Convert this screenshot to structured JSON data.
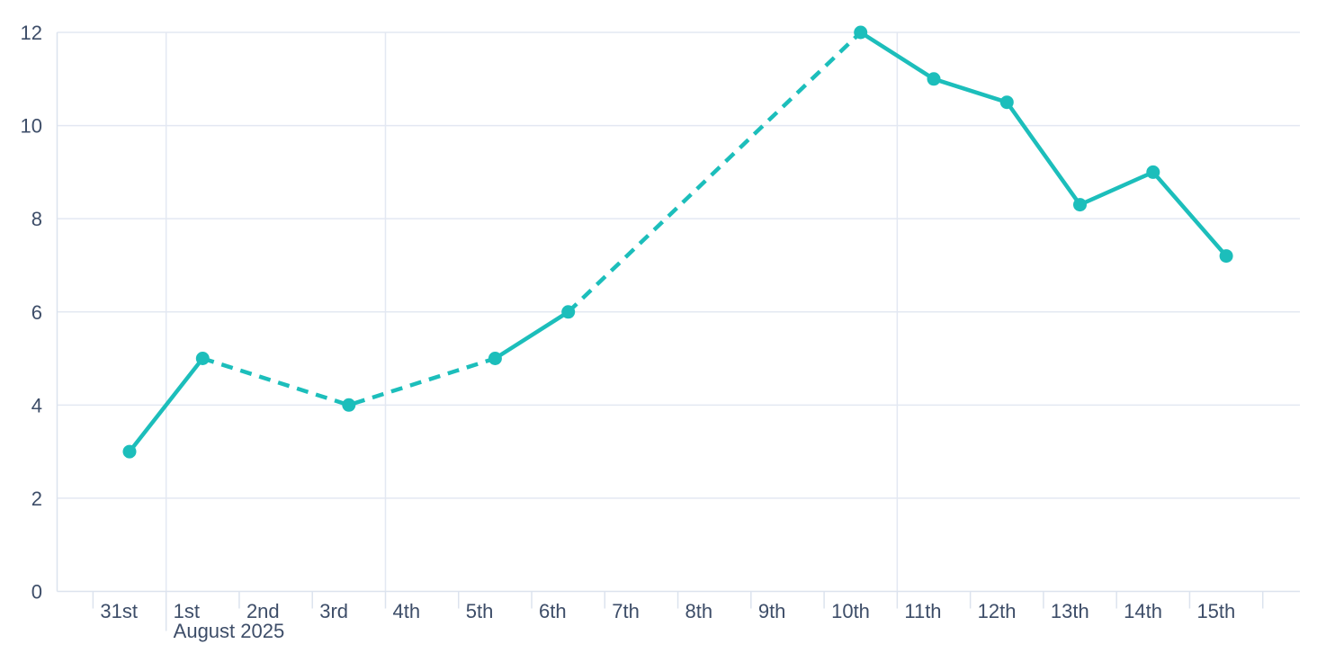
{
  "chart_data": {
    "type": "line",
    "title": "",
    "x_axis": {
      "tick_labels": [
        "31st",
        "1st",
        "2nd",
        "3rd",
        "4th",
        "5th",
        "6th",
        "7th",
        "8th",
        "9th",
        "10th",
        "11th",
        "12th",
        "13th",
        "14th",
        "15th"
      ],
      "month_label": "August 2025",
      "month_boundary_label": "1st",
      "vertical_gridlines_at": [
        "1st",
        "4th",
        "11th"
      ]
    },
    "y_axis": {
      "ticks": [
        0,
        2,
        4,
        6,
        8,
        10,
        12
      ],
      "min": 0,
      "max": 12
    },
    "series": [
      {
        "name": "daily-values",
        "color": "#1CBEBB",
        "marker_radius": 7.5,
        "points": [
          {
            "date": "31st",
            "value": 3
          },
          {
            "date": "1st",
            "value": 5
          },
          {
            "date": "3rd",
            "value": 4
          },
          {
            "date": "5th",
            "value": 5
          },
          {
            "date": "6th",
            "value": 6
          },
          {
            "date": "10th",
            "value": 12
          },
          {
            "date": "11th",
            "value": 11
          },
          {
            "date": "12th",
            "value": 10.5
          },
          {
            "date": "13th",
            "value": 8.3
          },
          {
            "date": "14th",
            "value": 9
          },
          {
            "date": "15th",
            "value": 7.2
          }
        ],
        "segments": [
          {
            "from": "31st",
            "to": "1st",
            "style": "solid"
          },
          {
            "from": "1st",
            "to": "5th",
            "style": "dashed"
          },
          {
            "from": "5th",
            "to": "6th",
            "style": "solid"
          },
          {
            "from": "6th",
            "to": "10th",
            "style": "dashed"
          },
          {
            "from": "10th",
            "to": "15th",
            "style": "solid"
          }
        ]
      }
    ],
    "colors": {
      "line": "#1CBEBB",
      "gridline": "#E3E8F2",
      "axis": "#DCE3EE",
      "label": "#3D4D68",
      "background": "#FFFFFF"
    },
    "legend": {
      "visible": false
    },
    "grid": {
      "horizontal": true,
      "vertical": "week-and-month-boundaries"
    }
  }
}
